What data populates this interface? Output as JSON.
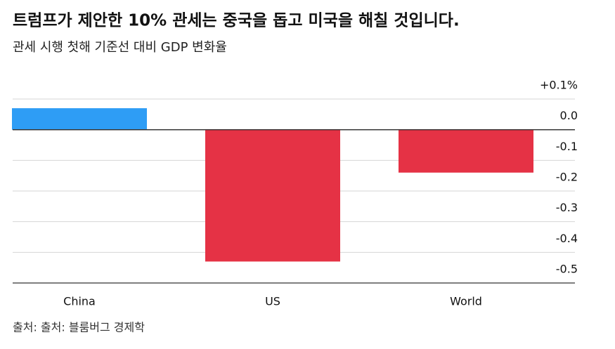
{
  "chart_data": {
    "type": "bar",
    "title": "트럼프가 제안한 10% 관세는 중국을 돕고 미국을 해칠 것입니다.",
    "subtitle": "관세 시행 첫해 기준선 대비 GDP 변화율",
    "source": "출처: 출처: 블룸버그 경제학",
    "categories": [
      "China",
      "US",
      "World"
    ],
    "values": [
      0.07,
      -0.43,
      -0.14
    ],
    "colors": [
      "#2e9df5",
      "#e53245",
      "#e53245"
    ],
    "ylim": [
      -0.5,
      0.1
    ],
    "yticks": [
      {
        "value": 0.1,
        "label": "+0.1%"
      },
      {
        "value": 0,
        "label": "0.0"
      },
      -0.1,
      -0.2,
      -0.3,
      -0.4,
      -0.5
    ],
    "grid": true
  }
}
